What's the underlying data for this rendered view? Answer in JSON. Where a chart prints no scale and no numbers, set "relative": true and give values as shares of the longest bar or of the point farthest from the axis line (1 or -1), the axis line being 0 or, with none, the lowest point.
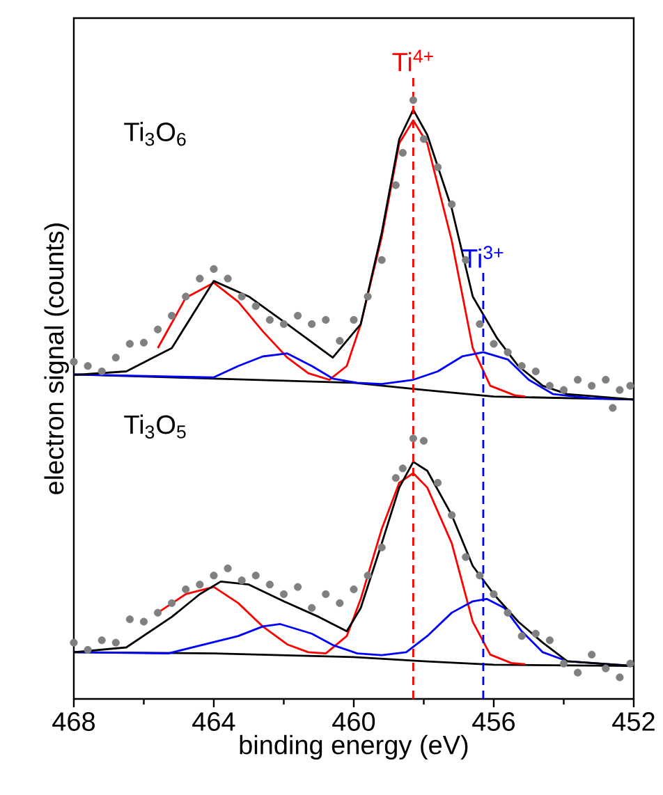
{
  "chart_data": {
    "type": "line",
    "xlabel": "binding energy (eV)",
    "ylabel": "electron signal (counts)",
    "relative": true,
    "xlim": [
      468,
      452
    ],
    "xticks": [
      468,
      464,
      460,
      456,
      452
    ],
    "annotations": [
      "Ti$_{3}$O$_{6}$",
      "Ti$_{3}$O$_{5}$"
    ],
    "ref_lines": [
      {
        "axis": "x",
        "value": 458.3,
        "label": "Ti$^{4+}$",
        "color": "#ff0000",
        "line_style": "dashed"
      },
      {
        "axis": "x",
        "value": 456.3,
        "label": "Ti$^{3+}$",
        "color": "#0000ff",
        "line_style": "dashed"
      }
    ],
    "series": [
      {
        "type": "scatter",
        "marker": "circle",
        "color": "#808080",
        "x": [
          468,
          467.6,
          467.2,
          466.8,
          466.4,
          466.0,
          465.6,
          465.2,
          464.8,
          464.4,
          464.0,
          463.6,
          463.2,
          462.8,
          462.4,
          462.0,
          461.6,
          461.2,
          460.8,
          460.4,
          460.0,
          459.6,
          459.2,
          458.8,
          458.6,
          458.3,
          458.0,
          457.6,
          457.2,
          456.8,
          456.4,
          456.0,
          455.6,
          455.2,
          454.8,
          454.4,
          454.0,
          453.6,
          453.2,
          452.8,
          452.6,
          452.4,
          452.1
        ],
        "values": [
          0.563,
          0.556,
          0.547,
          0.57,
          0.593,
          0.595,
          0.617,
          0.64,
          0.672,
          0.702,
          0.718,
          0.702,
          0.672,
          0.656,
          0.633,
          0.626,
          0.64,
          0.626,
          0.633,
          0.598,
          0.633,
          0.672,
          0.733,
          0.858,
          0.912,
          1.0,
          0.935,
          0.888,
          0.826,
          0.733,
          0.626,
          0.593,
          0.579,
          0.556,
          0.547,
          0.523,
          0.516,
          0.533,
          0.523,
          0.533,
          0.486,
          0.516,
          0.523
        ]
      },
      {
        "color": "#000000",
        "x": [
          468,
          464,
          460,
          458,
          456,
          452
        ],
        "values": [
          0.542,
          0.535,
          0.528,
          0.516,
          0.505,
          0.5
        ]
      },
      {
        "color": "#ff0000",
        "x": [
          465.6,
          464.8,
          464.0,
          463.3,
          462.6,
          461.9,
          461.3,
          460.7,
          460.2,
          459.8,
          459.2,
          458.7,
          458.3,
          457.9,
          457.2,
          456.6,
          456.1,
          455.4,
          455.1
        ],
        "values": [
          0.586,
          0.67,
          0.695,
          0.663,
          0.614,
          0.57,
          0.544,
          0.533,
          0.556,
          0.626,
          0.772,
          0.928,
          0.966,
          0.928,
          0.765,
          0.586,
          0.523,
          0.507,
          0.505
        ]
      },
      {
        "color": "#0000ff",
        "x": [
          468,
          465,
          464,
          463.3,
          462.6,
          461.9,
          461.2,
          460.6,
          459.9,
          459.2,
          458.3,
          457.6,
          456.9,
          456.3,
          455.6,
          455.0,
          454.3,
          453.2,
          452
        ],
        "values": [
          0.542,
          0.538,
          0.537,
          0.556,
          0.572,
          0.577,
          0.556,
          0.535,
          0.528,
          0.526,
          0.533,
          0.547,
          0.572,
          0.579,
          0.567,
          0.533,
          0.509,
          0.502,
          0.5
        ]
      },
      {
        "color": "#000000",
        "x": [
          468,
          466.5,
          465.2,
          464,
          463,
          461.9,
          460.6,
          459.8,
          459.2,
          458.7,
          458.3,
          457.9,
          457.2,
          456.6,
          455.9,
          455.3,
          454.6,
          453.9,
          452
        ],
        "values": [
          0.541,
          0.547,
          0.586,
          0.698,
          0.672,
          0.626,
          0.57,
          0.626,
          0.779,
          0.935,
          0.984,
          0.942,
          0.819,
          0.672,
          0.602,
          0.556,
          0.523,
          0.509,
          0.5
        ]
      },
      {
        "type": "scatter",
        "marker": "circle",
        "color": "#808080",
        "x": [
          468,
          467.6,
          467.2,
          466.8,
          466.4,
          466.0,
          465.6,
          465.2,
          464.8,
          464.4,
          464.0,
          463.6,
          463.2,
          462.8,
          462.4,
          462.0,
          461.6,
          461.2,
          460.8,
          460.4,
          460.0,
          459.6,
          459.2,
          458.8,
          458.6,
          458.3,
          458.0,
          457.6,
          457.2,
          456.8,
          456.4,
          456.0,
          455.6,
          455.2,
          454.8,
          454.4,
          454.0,
          453.6,
          453.2,
          452.8,
          452.4,
          452.1
        ],
        "values": [
          0.094,
          0.082,
          0.098,
          0.094,
          0.133,
          0.129,
          0.144,
          0.16,
          0.183,
          0.191,
          0.206,
          0.218,
          0.198,
          0.206,
          0.191,
          0.175,
          0.187,
          0.152,
          0.175,
          0.16,
          0.183,
          0.206,
          0.253,
          0.369,
          0.385,
          0.435,
          0.431,
          0.361,
          0.307,
          0.237,
          0.206,
          0.175,
          0.144,
          0.105,
          0.109,
          0.098,
          0.059,
          0.044,
          0.074,
          0.051,
          0.036,
          0.059
        ]
      },
      {
        "color": "#000000",
        "x": [
          468,
          464,
          460,
          458,
          456,
          452
        ],
        "values": [
          0.078,
          0.076,
          0.07,
          0.063,
          0.057,
          0.055
        ]
      },
      {
        "color": "#ff0000",
        "x": [
          465.6,
          464.8,
          464.0,
          463.3,
          462.6,
          461.9,
          461.3,
          460.8,
          460.2,
          459.8,
          459.2,
          458.7,
          458.3,
          457.9,
          457.2,
          456.6,
          456.1,
          455.5,
          455.1
        ],
        "values": [
          0.144,
          0.175,
          0.187,
          0.16,
          0.121,
          0.091,
          0.078,
          0.076,
          0.105,
          0.167,
          0.284,
          0.361,
          0.377,
          0.353,
          0.26,
          0.129,
          0.074,
          0.06,
          0.058
        ]
      },
      {
        "color": "#0000ff",
        "x": [
          468,
          465.3,
          463.3,
          462.6,
          462.1,
          461.2,
          460.6,
          459.9,
          459.2,
          458.5,
          457.9,
          457.2,
          456.6,
          456.2,
          455.7,
          455.2,
          454.6,
          453.9,
          452
        ],
        "values": [
          0.078,
          0.076,
          0.105,
          0.121,
          0.125,
          0.109,
          0.09,
          0.076,
          0.073,
          0.078,
          0.105,
          0.144,
          0.163,
          0.167,
          0.152,
          0.113,
          0.078,
          0.063,
          0.055
        ]
      },
      {
        "color": "#000000",
        "x": [
          468,
          466.5,
          465.2,
          464.4,
          463.8,
          463.0,
          462,
          461,
          460.2,
          459.8,
          459.2,
          458.7,
          458.3,
          457.9,
          457.2,
          456.6,
          456.0,
          455.3,
          454.6,
          453.9,
          452
        ],
        "values": [
          0.078,
          0.086,
          0.137,
          0.175,
          0.196,
          0.191,
          0.163,
          0.137,
          0.113,
          0.152,
          0.26,
          0.353,
          0.396,
          0.381,
          0.307,
          0.222,
          0.175,
          0.129,
          0.094,
          0.063,
          0.055
        ]
      }
    ]
  }
}
